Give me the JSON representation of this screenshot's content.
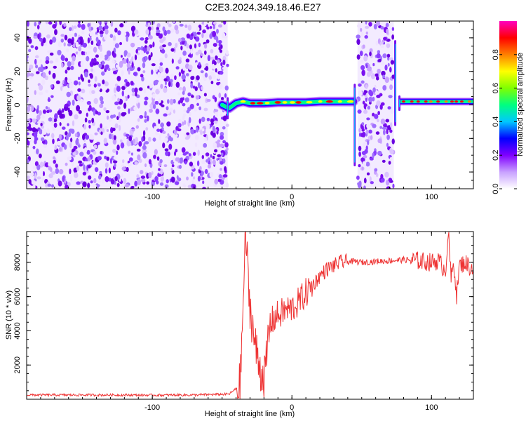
{
  "title": "C2E3.2024.349.18.46.E27",
  "chart_data": [
    {
      "type": "heatmap",
      "xlabel": "Height of straight line (km)",
      "ylabel": "Frequency (Hz)",
      "xlim": [
        -190,
        130
      ],
      "ylim": [
        -50,
        50
      ],
      "x_ticks": [
        -100,
        0,
        100
      ],
      "y_ticks": [
        -40,
        -20,
        0,
        20,
        40
      ],
      "colorbar": {
        "label": "Normalized spectral amplitude",
        "range": [
          0,
          1
        ],
        "ticks": [
          0.0,
          0.2,
          0.4,
          0.6,
          0.8
        ],
        "colormap": [
          "#ffffff",
          "#c8a0ff",
          "#8000ff",
          "#0000ff",
          "#00c8ff",
          "#00ff80",
          "#80ff00",
          "#ffff00",
          "#ff8000",
          "#ff0000",
          "#ff00c0"
        ]
      },
      "regions": [
        {
          "kind": "noise",
          "x": [
            -190,
            -46
          ],
          "y": [
            -50,
            50
          ]
        },
        {
          "kind": "signal",
          "x": [
            -50,
            44
          ],
          "frequency": 1.5
        },
        {
          "kind": "noise",
          "x": [
            47,
            73
          ],
          "y": [
            -50,
            50
          ]
        },
        {
          "kind": "signal",
          "x": [
            77,
            130
          ],
          "frequency": 2
        }
      ],
      "signal_path": {
        "x": [
          -50,
          -45,
          -40,
          -35,
          -30,
          -20,
          -10,
          0,
          10,
          20,
          30,
          40,
          44
        ],
        "y": [
          0,
          -2,
          1,
          2,
          1,
          1,
          1.5,
          1.5,
          1.5,
          2,
          2,
          2,
          2
        ]
      }
    },
    {
      "type": "line",
      "xlabel": "Height of straight line (km)",
      "ylabel": "SNR (10 * v/v)",
      "xlim": [
        -190,
        130
      ],
      "ylim": [
        0,
        9800
      ],
      "x_ticks": [
        -100,
        0,
        100
      ],
      "y_ticks": [
        2000,
        4000,
        6000,
        8000
      ],
      "color": "#ee3333",
      "series": [
        {
          "x": [
            -190,
            -160,
            -130,
            -100,
            -70,
            -45,
            -37,
            -35,
            -33,
            -31,
            -29,
            -27,
            -25,
            -22,
            -19,
            -17,
            -15,
            -12,
            -8,
            -4,
            0,
            4,
            8,
            12,
            16,
            20,
            25,
            30,
            35,
            40,
            45,
            50,
            60,
            70,
            80,
            90,
            100,
            105,
            110,
            112,
            114,
            116,
            118,
            120,
            124,
            128,
            130
          ],
          "y": [
            250,
            250,
            250,
            240,
            250,
            300,
            800,
            5500,
            9800,
            6200,
            4800,
            3500,
            2500,
            1600,
            1400,
            3500,
            4500,
            4800,
            5000,
            5200,
            5300,
            5600,
            6000,
            6400,
            6800,
            7200,
            7600,
            7800,
            8000,
            8050,
            8050,
            8000,
            8050,
            8100,
            8150,
            8100,
            8000,
            8100,
            7500,
            9800,
            7000,
            8000,
            6100,
            7800,
            8000,
            7700,
            7600
          ]
        }
      ]
    }
  ]
}
